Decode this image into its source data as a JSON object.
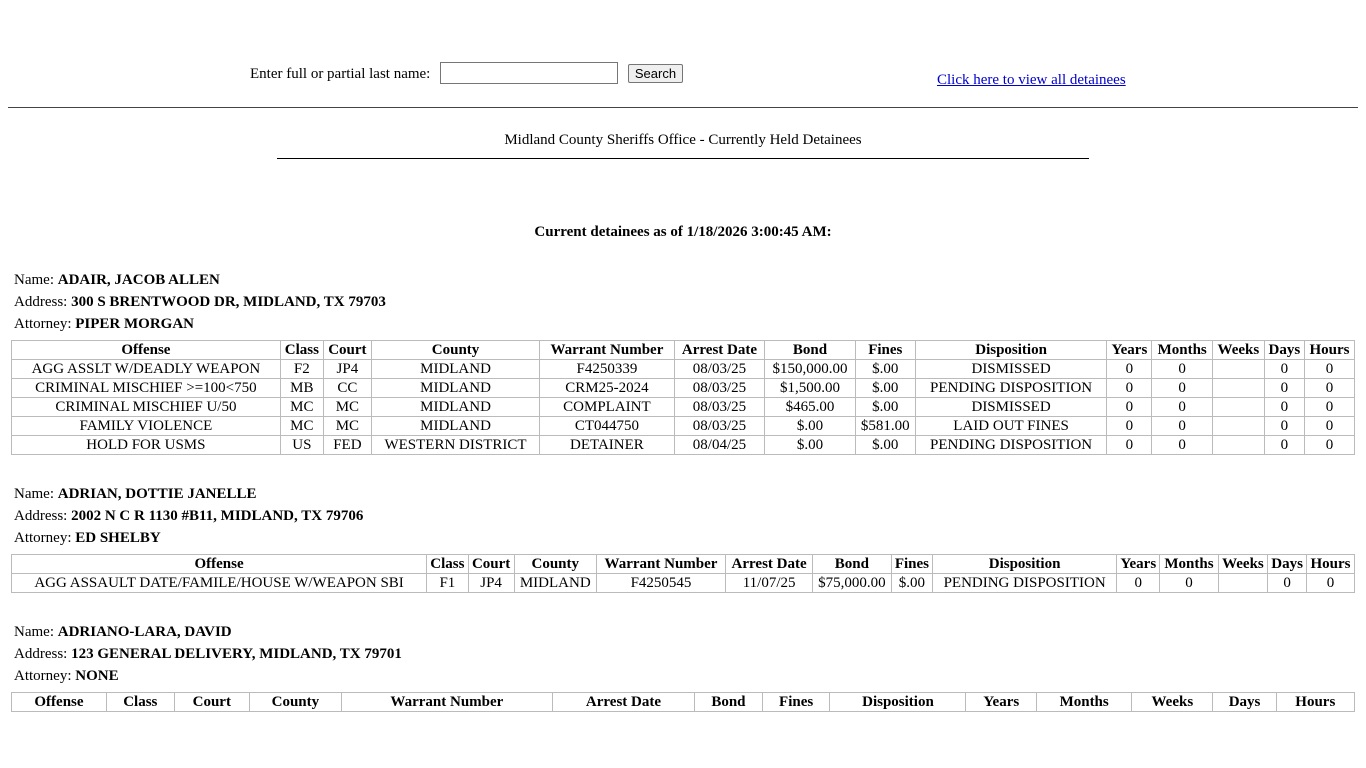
{
  "search": {
    "label": "Enter full or partial last name:",
    "button": "Search",
    "link": "Click here to view all detainees"
  },
  "header": {
    "title": "Midland County Sheriffs Office - Currently Held Detainees",
    "as_of": "Current detainees as of 1/18/2026 3:00:45 AM:"
  },
  "labels": {
    "name": "Name:",
    "address": "Address:",
    "attorney": "Attorney:"
  },
  "columns": [
    "Offense",
    "Class",
    "Court",
    "County",
    "Warrant Number",
    "Arrest Date",
    "Bond",
    "Fines",
    "Disposition",
    "Years",
    "Months",
    "Weeks",
    "Days",
    "Hours"
  ],
  "detainees": [
    {
      "name": "ADAIR, JACOB ALLEN",
      "address": "300 S BRENTWOOD DR, MIDLAND, TX 79703",
      "attorney": "PIPER MORGAN",
      "rows": [
        [
          "AGG ASSLT W/DEADLY WEAPON",
          "F2",
          "JP4",
          "MIDLAND",
          "F4250339",
          "08/03/25",
          "$150,000.00",
          "$.00",
          "DISMISSED",
          0,
          0,
          null,
          0,
          0
        ],
        [
          "CRIMINAL MISCHIEF >=100<750",
          "MB",
          "CC",
          "MIDLAND",
          "CRM25-2024",
          "08/03/25",
          "$1,500.00",
          "$.00",
          "PENDING DISPOSITION",
          0,
          0,
          null,
          0,
          0
        ],
        [
          "CRIMINAL MISCHIEF U/50",
          "MC",
          "MC",
          "MIDLAND",
          "COMPLAINT",
          "08/03/25",
          "$465.00",
          "$.00",
          "DISMISSED",
          0,
          0,
          null,
          0,
          0
        ],
        [
          "FAMILY VIOLENCE",
          "MC",
          "MC",
          "MIDLAND",
          "CT044750",
          "08/03/25",
          "$.00",
          "$581.00",
          "LAID OUT FINES",
          0,
          0,
          null,
          0,
          0
        ],
        [
          "HOLD FOR USMS",
          "US",
          "FED",
          "WESTERN DISTRICT",
          "DETAINER",
          "08/04/25",
          "$.00",
          "$.00",
          "PENDING DISPOSITION",
          0,
          0,
          null,
          0,
          0
        ]
      ]
    },
    {
      "name": "ADRIAN, DOTTIE JANELLE",
      "address": "2002 N C R 1130 #B11, MIDLAND, TX 79706",
      "attorney": "ED SHELBY",
      "rows": [
        [
          "AGG ASSAULT DATE/FAMILE/HOUSE W/WEAPON SBI",
          "F1",
          "JP4",
          "MIDLAND",
          "F4250545",
          "11/07/25",
          "$75,000.00",
          "$.00",
          "PENDING DISPOSITION",
          0,
          0,
          null,
          0,
          0
        ]
      ]
    },
    {
      "name": "ADRIANO-LARA, DAVID",
      "address": "123 GENERAL DELIVERY, MIDLAND, TX 79701",
      "attorney": "NONE",
      "rows": []
    }
  ]
}
